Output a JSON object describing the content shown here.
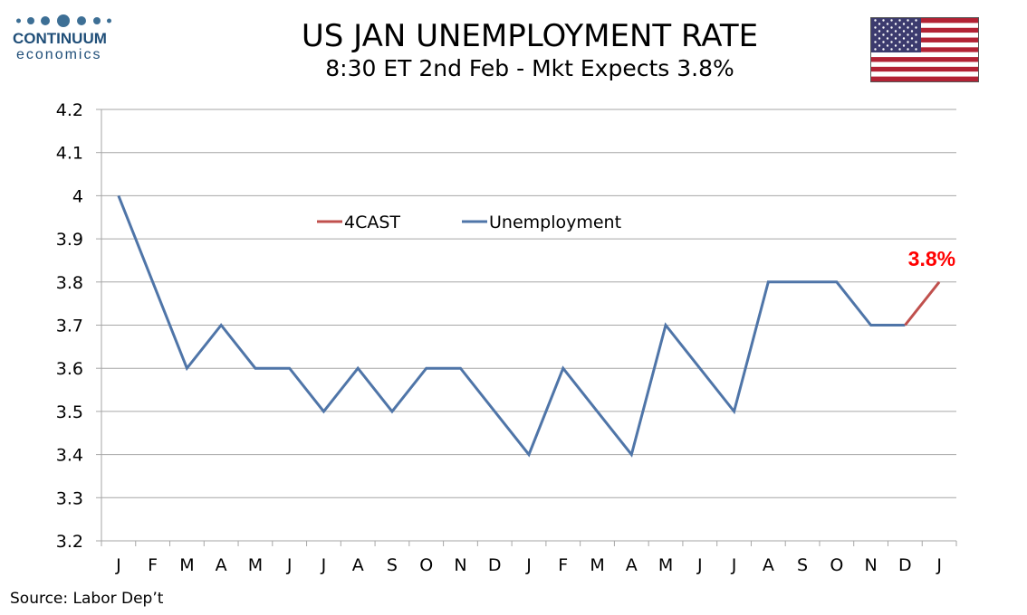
{
  "logo": {
    "name": "CONTINUUM",
    "sub": "economics",
    "color": "#1f4e78"
  },
  "header": {
    "title": "US JAN UNEMPLOYMENT RATE",
    "subtitle": "8:30 ET 2nd Feb - Mkt Expects 3.8%"
  },
  "flag": {
    "name": "us-flag-icon"
  },
  "source": "Source: Labor Dep’t",
  "chart_data": {
    "type": "line",
    "categories": [
      "J",
      "F",
      "M",
      "A",
      "M",
      "J",
      "J",
      "A",
      "S",
      "O",
      "N",
      "D",
      "J",
      "F",
      "M",
      "A",
      "M",
      "J",
      "J",
      "A",
      "S",
      "O",
      "N",
      "D",
      "J"
    ],
    "ylim": [
      3.2,
      4.2
    ],
    "yticks": [
      "3.2",
      "3.3",
      "3.4",
      "3.5",
      "3.6",
      "3.7",
      "3.8",
      "3.9",
      "4",
      "4.1",
      "4.2"
    ],
    "grid": true,
    "legend_position": "top-center",
    "series": [
      {
        "name": "Unemployment",
        "color": "#4f75a8",
        "values": [
          4.0,
          3.8,
          3.6,
          3.7,
          3.6,
          3.6,
          3.5,
          3.6,
          3.5,
          3.6,
          3.6,
          3.5,
          3.4,
          3.6,
          3.5,
          3.4,
          3.7,
          3.6,
          3.5,
          3.8,
          3.8,
          3.8,
          3.7,
          3.7,
          null
        ]
      },
      {
        "name": "4CAST",
        "color": "#c0504d",
        "values": [
          null,
          null,
          null,
          null,
          null,
          null,
          null,
          null,
          null,
          null,
          null,
          null,
          null,
          null,
          null,
          null,
          null,
          null,
          null,
          null,
          null,
          null,
          null,
          3.7,
          3.8
        ]
      }
    ],
    "annotations": [
      {
        "text": "3.8%",
        "category_index": 24,
        "value": 3.8,
        "color": "#ff0000"
      }
    ]
  }
}
